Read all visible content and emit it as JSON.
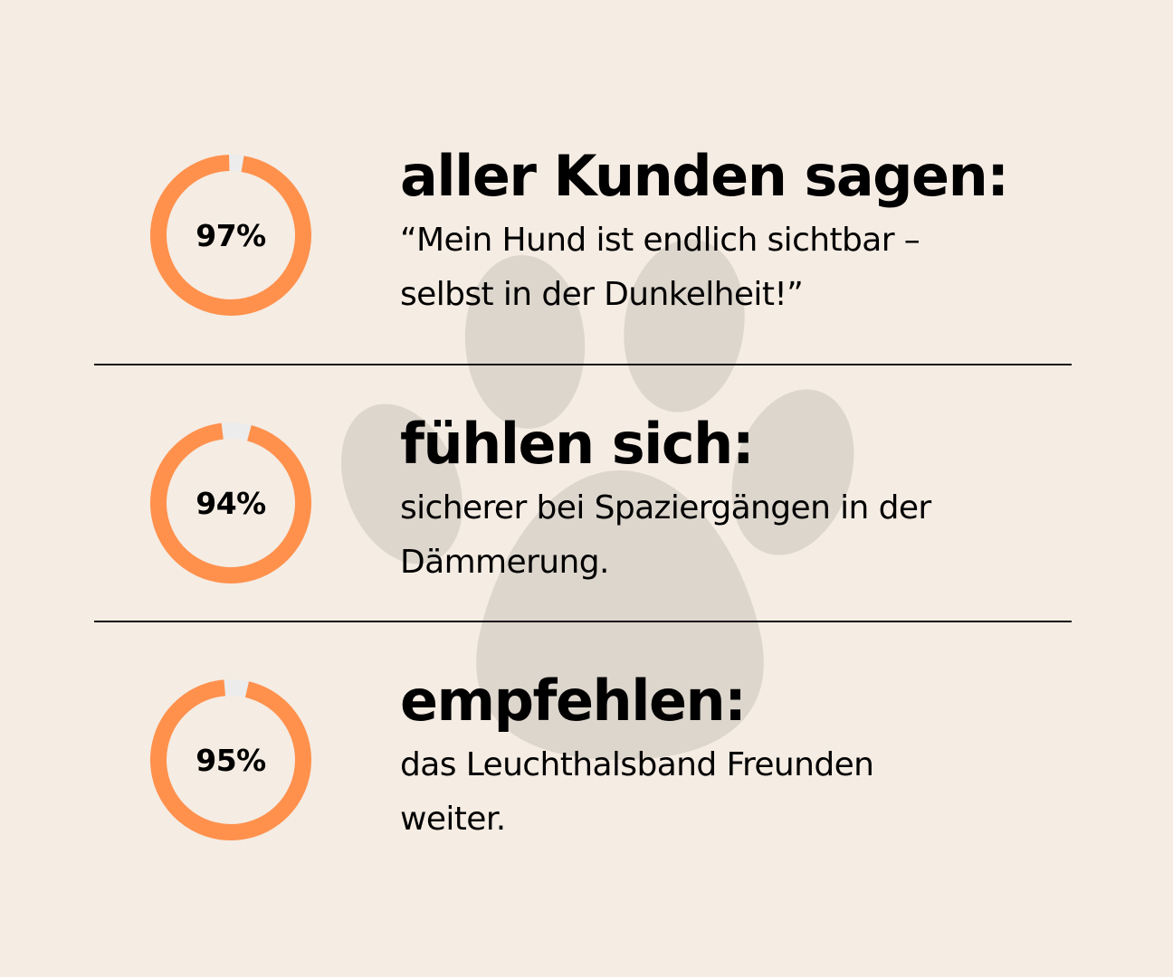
{
  "colors": {
    "background": "#f5ece3",
    "ring": "#ff914d",
    "ring_track": "#ececec",
    "paw": "#ddd6cd",
    "text": "#000000",
    "divider": "#111111"
  },
  "stats": [
    {
      "percent": 97,
      "percent_label": "97%",
      "heading": "aller Kunden sagen:",
      "lines": [
        "“Mein Hund ist endlich sichtbar –",
        "selbst in der Dunkelheit!”"
      ]
    },
    {
      "percent": 94,
      "percent_label": "94%",
      "heading": "fühlen sich:",
      "lines": [
        "sicherer bei Spaziergängen in der",
        "Dämmerung."
      ]
    },
    {
      "percent": 95,
      "percent_label": "95%",
      "heading": "empfehlen:",
      "lines": [
        "das Leuchthalsband Freunden",
        "weiter."
      ]
    }
  ]
}
